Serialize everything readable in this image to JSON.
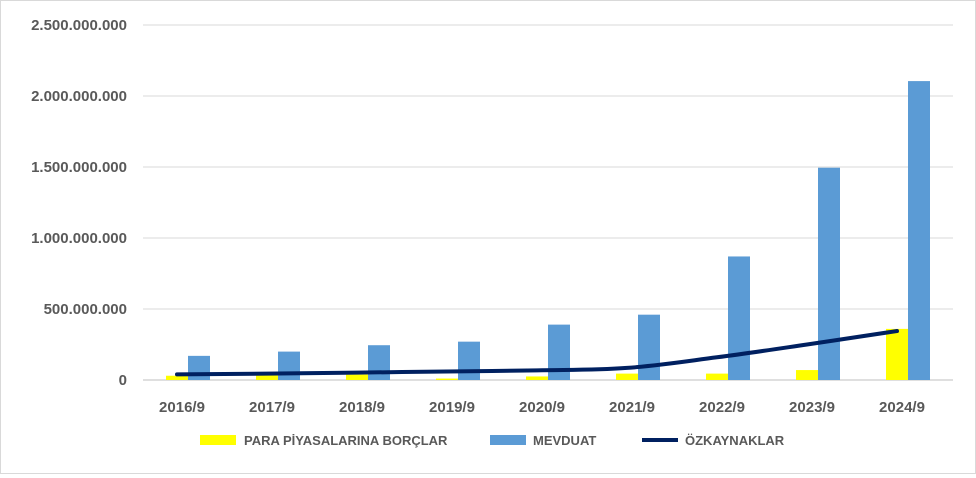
{
  "chart_data": {
    "type": "bar",
    "categories": [
      "2016/9",
      "2017/9",
      "2018/9",
      "2019/9",
      "2020/9",
      "2021/9",
      "2022/9",
      "2023/9",
      "2024/9"
    ],
    "series": [
      {
        "name": "PARA PİYASALARINA BORÇLAR",
        "type": "bar",
        "color": "#FFFF00",
        "values": [
          30000000,
          35000000,
          38000000,
          10000000,
          25000000,
          45000000,
          45000000,
          70000000,
          360000000
        ]
      },
      {
        "name": "MEVDUAT",
        "type": "bar",
        "color": "#5B9BD5",
        "values": [
          170000000,
          200000000,
          245000000,
          270000000,
          390000000,
          460000000,
          870000000,
          1495000000,
          2105000000
        ]
      },
      {
        "name": "ÖZKAYNAKLAR",
        "type": "line",
        "color": "#002060",
        "values": [
          40000000,
          45000000,
          52000000,
          60000000,
          68000000,
          85000000,
          160000000,
          250000000,
          345000000
        ]
      }
    ],
    "yticks": [
      "0",
      "500.000.000",
      "1.000.000.000",
      "1.500.000.000",
      "2.000.000.000",
      "2.500.000.000"
    ],
    "ylim": [
      0,
      2500000000
    ],
    "grid": true,
    "legend_position": "bottom"
  }
}
